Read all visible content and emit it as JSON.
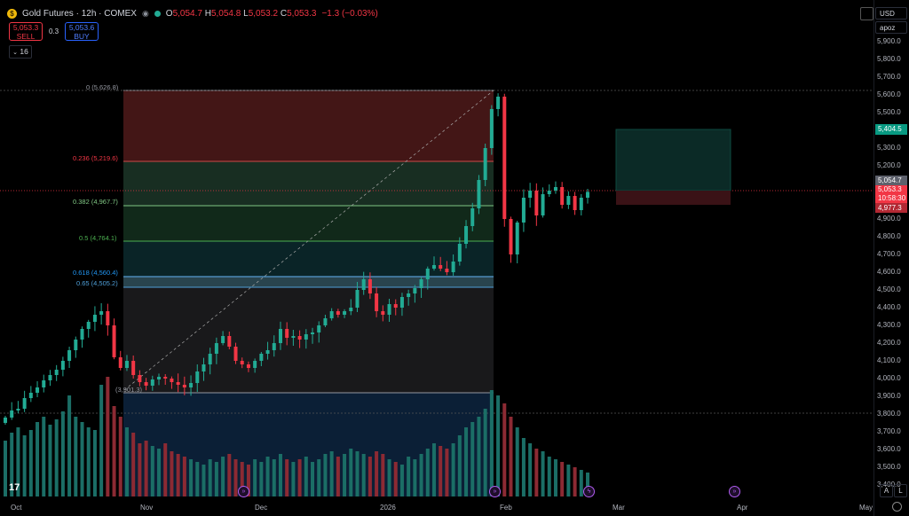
{
  "header": {
    "symbol_icon": "gold-coin-icon",
    "title": "Gold Futures · 12h · COMEX",
    "ohlc": [
      {
        "k": "O",
        "v": "5,054.7"
      },
      {
        "k": "H",
        "v": "5,054.8"
      },
      {
        "k": "L",
        "v": "5,053.2"
      },
      {
        "k": "C",
        "v": "5,053.3"
      }
    ],
    "change": "−1.3 (−0.03%)"
  },
  "trade": {
    "sell_price": "5,053.3",
    "sell_label": "SELL",
    "spread": "0.3",
    "buy_price": "5,053.6",
    "buy_label": "BUY"
  },
  "interval_toggle": "16",
  "axis": {
    "currency": "USD",
    "unit": "apoz",
    "price_labels": [
      "5,900.0",
      "5,800.0",
      "5,700.0",
      "5,600.0",
      "5,500.0",
      "5,400.0",
      "5,300.0",
      "5,200.0",
      "5,100.0",
      "5,000.0",
      "4,900.0",
      "4,800.0",
      "4,700.0",
      "4,600.0",
      "4,500.0",
      "4,400.0",
      "4,300.0",
      "4,200.0",
      "4,100.0",
      "4,000.0",
      "3,900.0",
      "3,800.0",
      "3,700.0",
      "3,600.0",
      "3,500.0",
      "3,400.0"
    ],
    "time_labels": [
      "Oct",
      "Nov",
      "Dec",
      "2026",
      "Feb",
      "Mar",
      "Apr",
      "May"
    ]
  },
  "badges": {
    "target": "5,404.5",
    "last": "5,054.7",
    "current": "5,053.3",
    "countdown": "10:58:30",
    "stop": "4,977.3"
  },
  "fib": [
    {
      "label": "0 (5,626.8)",
      "color": "#9598a1"
    },
    {
      "label": "0.236 (5,219.6)",
      "color": "#f23645"
    },
    {
      "label": "0.382 (4,967.7)",
      "color": "#81c784"
    },
    {
      "label": "0.5 (4,764.1)",
      "color": "#4caf50"
    },
    {
      "label": "0.618 (4,560.4)",
      "color": "#2196f3"
    },
    {
      "label": "0.65 (4,505.2)",
      "color": "#4f9fd8"
    },
    {
      "label": "(3,901.3)",
      "color": "#9598a1"
    }
  ],
  "colors": {
    "up": "#22ab94",
    "down": "#f23645",
    "vol_up": "#1b6e66",
    "vol_down": "#8c2a33"
  },
  "controls": {
    "auto": "A",
    "log": "L"
  },
  "chart_data": {
    "type": "candlestick",
    "series": [
      {
        "name": "Gold Futures",
        "close": [
          3780,
          3820,
          3830,
          3890,
          3920,
          3950,
          3990,
          4020,
          4050,
          4100,
          4160,
          4220,
          4280,
          4320,
          4360,
          4380,
          4300,
          4120,
          4060,
          4100,
          4020,
          3980,
          3960,
          3995,
          4010,
          4000,
          3980,
          3965,
          3950,
          3975,
          4040,
          4080,
          4140,
          4200,
          4240,
          4180,
          4100,
          4080,
          4060,
          4100,
          4140,
          4160,
          4200,
          4280,
          4230,
          4240,
          4220,
          4250,
          4260,
          4300,
          4340,
          4380,
          4360,
          4380,
          4400,
          4500,
          4560,
          4480,
          4380,
          4360,
          4420,
          4400,
          4460,
          4480,
          4510,
          4560,
          4620,
          4640,
          4620,
          4600,
          4660,
          4760,
          4860,
          4960,
          5120,
          5300,
          5520,
          5590,
          4900,
          4700,
          4880,
          5020,
          5060,
          4920,
          5040,
          5060,
          5080,
          4980,
          5030,
          4950,
          5020,
          5053
        ]
      }
    ],
    "volume": [
      210,
      240,
      260,
      230,
      250,
      280,
      300,
      270,
      290,
      320,
      380,
      300,
      280,
      260,
      250,
      420,
      450,
      340,
      300,
      260,
      240,
      200,
      210,
      190,
      180,
      200,
      170,
      160,
      150,
      140,
      130,
      120,
      140,
      130,
      150,
      160,
      140,
      130,
      120,
      140,
      130,
      150,
      140,
      160,
      140,
      130,
      140,
      150,
      130,
      140,
      160,
      170,
      150,
      160,
      180,
      170,
      160,
      150,
      170,
      160,
      140,
      130,
      120,
      150,
      140,
      160,
      180,
      200,
      190,
      180,
      200,
      230,
      260,
      280,
      300,
      330,
      400,
      380,
      350,
      300,
      260,
      220,
      200,
      180,
      170,
      150,
      140,
      130,
      120,
      110,
      100,
      90
    ],
    "ylim": [
      3380,
      5980
    ]
  }
}
